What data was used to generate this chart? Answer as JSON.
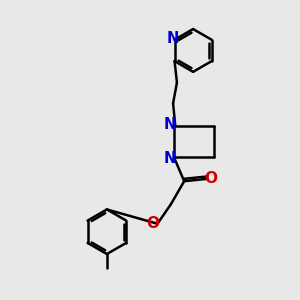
{
  "bg_color": "#e8e8e8",
  "bond_color": "#000000",
  "N_color": "#0000cc",
  "O_color": "#cc0000",
  "bond_width": 1.8,
  "font_size": 10.5,
  "fig_size": [
    3.0,
    3.0
  ],
  "dpi": 100,
  "xlim": [
    0,
    10
  ],
  "ylim": [
    0,
    10
  ]
}
